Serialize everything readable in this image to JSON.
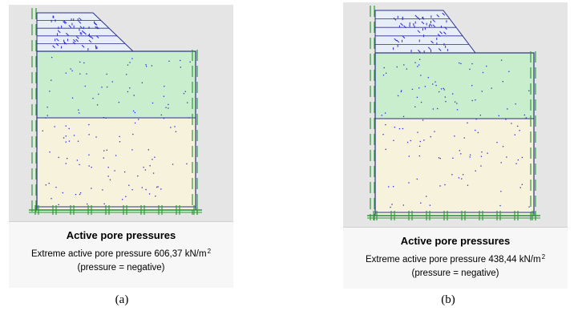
{
  "colors": {
    "upper_layer": "#c9eecd",
    "lower_layer": "#f6f2dc",
    "outline": "#2b2f8a",
    "anchor_lines": "#2f9a36",
    "points": "#2a2ad6",
    "hatching": "#2a2ad6"
  },
  "panels": [
    {
      "legend": {
        "title": "Active pore pressures",
        "value_text": "Extreme active pore pressure 606,37 kN/m",
        "superscript": "2",
        "note": "(pressure = negative)"
      },
      "caption": "(a)"
    },
    {
      "legend": {
        "title": "Active pore pressures",
        "value_text": "Extreme active pore pressure 438,44 kN/m",
        "superscript": "2",
        "note": "(pressure = negative)"
      },
      "caption": "(b)"
    }
  ]
}
